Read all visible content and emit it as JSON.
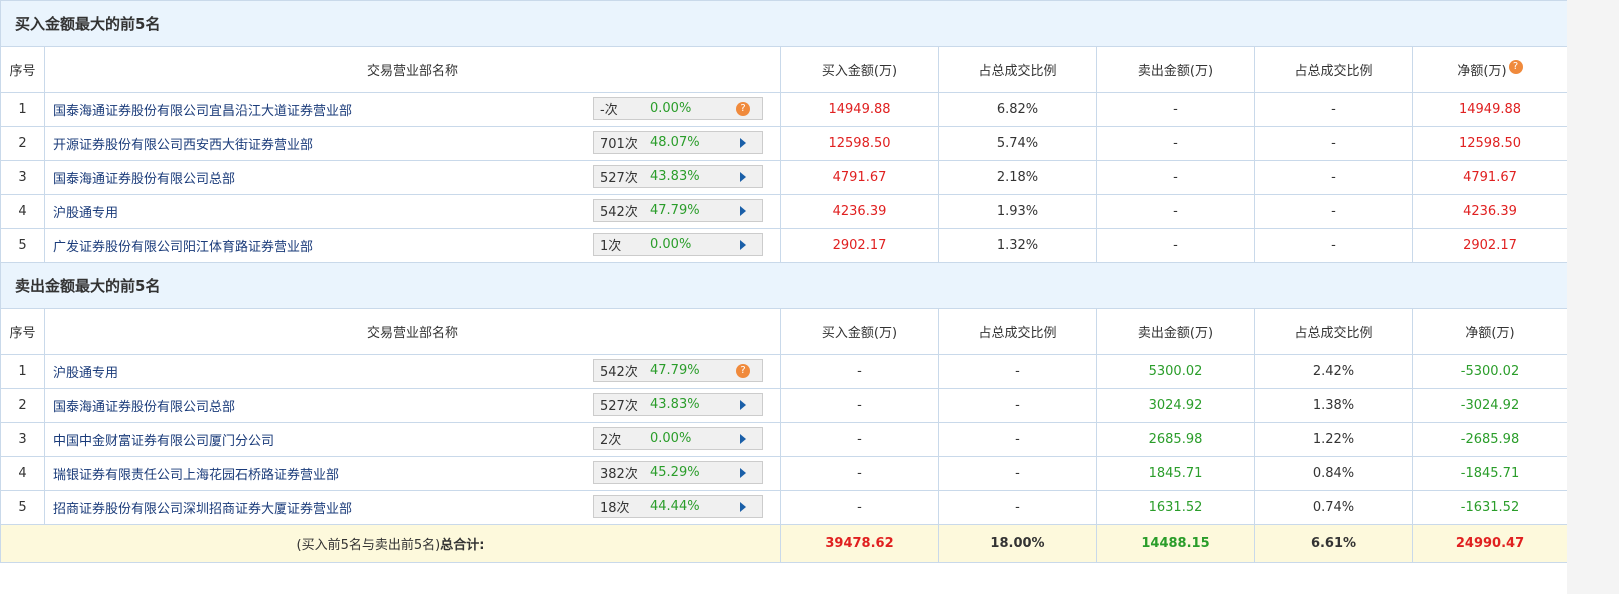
{
  "buy": {
    "title": "买入金额最大的前5名",
    "headers": [
      "序号",
      "交易营业部名称",
      "买入金额(万)",
      "占总成交比例",
      "卖出金额(万)",
      "占总成交比例",
      "净额(万)"
    ],
    "rows": [
      {
        "idx": "1",
        "name": "国泰海通证券股份有限公司宜昌沿江大道证券营业部",
        "count": "-次",
        "rate": "0.00%",
        "icon": "help",
        "buy": "14949.88",
        "buy_pct": "6.82%",
        "sell": "-",
        "sell_pct": "-",
        "net": "14949.88"
      },
      {
        "idx": "2",
        "name": "开源证券股份有限公司西安西大街证券营业部",
        "count": "701次",
        "rate": "48.07%",
        "icon": "arrow",
        "buy": "12598.50",
        "buy_pct": "5.74%",
        "sell": "-",
        "sell_pct": "-",
        "net": "12598.50"
      },
      {
        "idx": "3",
        "name": "国泰海通证券股份有限公司总部",
        "count": "527次",
        "rate": "43.83%",
        "icon": "arrow",
        "buy": "4791.67",
        "buy_pct": "2.18%",
        "sell": "-",
        "sell_pct": "-",
        "net": "4791.67"
      },
      {
        "idx": "4",
        "name": "沪股通专用",
        "count": "542次",
        "rate": "47.79%",
        "icon": "arrow",
        "buy": "4236.39",
        "buy_pct": "1.93%",
        "sell": "-",
        "sell_pct": "-",
        "net": "4236.39"
      },
      {
        "idx": "5",
        "name": "广发证券股份有限公司阳江体育路证券营业部",
        "count": "1次",
        "rate": "0.00%",
        "icon": "arrow",
        "buy": "2902.17",
        "buy_pct": "1.32%",
        "sell": "-",
        "sell_pct": "-",
        "net": "2902.17"
      }
    ]
  },
  "sell": {
    "title": "卖出金额最大的前5名",
    "headers": [
      "序号",
      "交易营业部名称",
      "买入金额(万)",
      "占总成交比例",
      "卖出金额(万)",
      "占总成交比例",
      "净额(万)"
    ],
    "rows": [
      {
        "idx": "1",
        "name": "沪股通专用",
        "count": "542次",
        "rate": "47.79%",
        "icon": "help",
        "buy": "-",
        "buy_pct": "-",
        "sell": "5300.02",
        "sell_pct": "2.42%",
        "net": "-5300.02"
      },
      {
        "idx": "2",
        "name": "国泰海通证券股份有限公司总部",
        "count": "527次",
        "rate": "43.83%",
        "icon": "arrow",
        "buy": "-",
        "buy_pct": "-",
        "sell": "3024.92",
        "sell_pct": "1.38%",
        "net": "-3024.92"
      },
      {
        "idx": "3",
        "name": "中国中金财富证券有限公司厦门分公司",
        "count": "2次",
        "rate": "0.00%",
        "icon": "arrow",
        "buy": "-",
        "buy_pct": "-",
        "sell": "2685.98",
        "sell_pct": "1.22%",
        "net": "-2685.98"
      },
      {
        "idx": "4",
        "name": "瑞银证券有限责任公司上海花园石桥路证券营业部",
        "count": "382次",
        "rate": "45.29%",
        "icon": "arrow",
        "buy": "-",
        "buy_pct": "-",
        "sell": "1845.71",
        "sell_pct": "0.84%",
        "net": "-1845.71"
      },
      {
        "idx": "5",
        "name": "招商证券股份有限公司深圳招商证券大厦证券营业部",
        "count": "18次",
        "rate": "44.44%",
        "icon": "arrow",
        "buy": "-",
        "buy_pct": "-",
        "sell": "1631.52",
        "sell_pct": "0.74%",
        "net": "-1631.52"
      }
    ]
  },
  "total": {
    "label_pre": "(买入前5名与卖出前5名)",
    "label_bold": "总合计:",
    "buy": "39478.62",
    "buy_pct": "18.00%",
    "sell": "14488.15",
    "sell_pct": "6.61%",
    "net": "24990.47"
  },
  "colors": {
    "positive": "#e02020",
    "negative": "#2a9d2a",
    "header_bg": "#eaf4fd",
    "total_bg": "#fdf9dc"
  }
}
